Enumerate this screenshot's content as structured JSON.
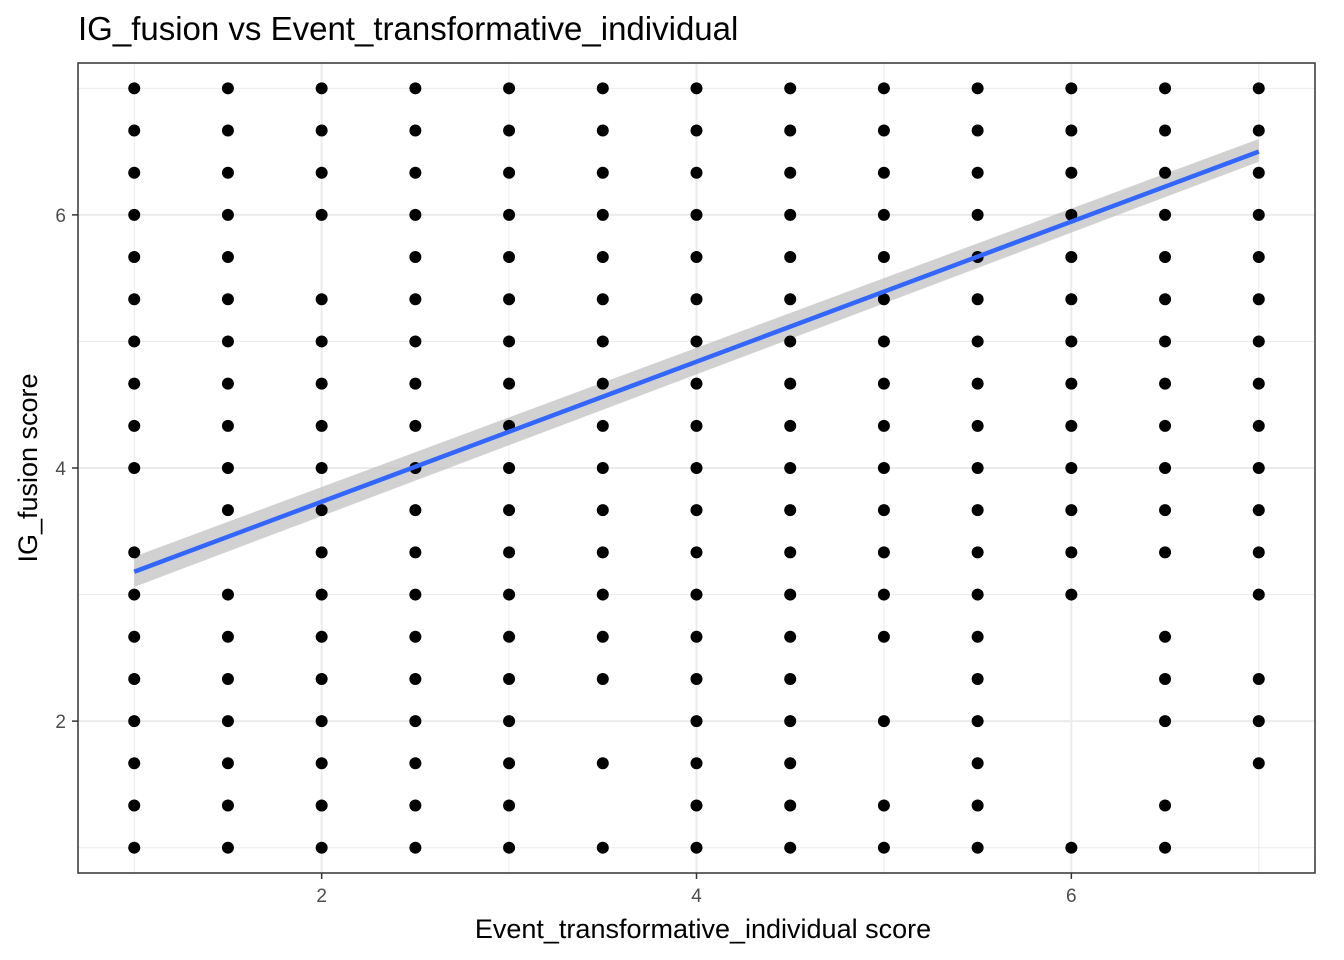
{
  "chart_data": {
    "type": "scatter",
    "title": "IG_fusion vs Event_transformative_individual",
    "xlabel": "Event_transformative_individual score",
    "ylabel": "IG_fusion score",
    "xlim": [
      0.7,
      7.3
    ],
    "ylim": [
      0.8,
      7.2
    ],
    "x_ticks": [
      2,
      4,
      6
    ],
    "y_ticks": [
      2,
      4,
      6
    ],
    "x_tick_labels": [
      "2",
      "4",
      "6"
    ],
    "y_tick_labels": [
      "2",
      "4",
      "6"
    ],
    "grid": true,
    "point_color": "#000000",
    "trend_color": "#3366FF",
    "band_color": "#BEBEBE",
    "columns": [
      {
        "x": 1,
        "y": [
          7,
          6.667,
          6.333,
          6,
          5.667,
          5.333,
          5,
          4.667,
          4.333,
          4,
          3.333,
          3,
          2.667,
          2.333,
          2,
          1.667,
          1.333,
          1
        ]
      },
      {
        "x": 1.5,
        "y": [
          7,
          6.667,
          6.333,
          6,
          5.667,
          5.333,
          5,
          4.667,
          4.333,
          4,
          3.667,
          3,
          2.667,
          2.333,
          2,
          1.667,
          1.333,
          1
        ]
      },
      {
        "x": 2,
        "y": [
          7,
          6.667,
          6.333,
          6,
          5.333,
          5,
          4.667,
          4.333,
          4,
          3.667,
          3.333,
          3,
          2.667,
          2.333,
          2,
          1.667,
          1.333,
          1
        ]
      },
      {
        "x": 2.5,
        "y": [
          7,
          6.667,
          6.333,
          6,
          5.667,
          5.333,
          5,
          4.667,
          4.333,
          4,
          3.667,
          3.333,
          3,
          2.667,
          2.333,
          2,
          1.667,
          1.333,
          1
        ]
      },
      {
        "x": 3,
        "y": [
          7,
          6.667,
          6.333,
          6,
          5.667,
          5.333,
          5,
          4.667,
          4.333,
          4,
          3.667,
          3.333,
          3,
          2.667,
          2.333,
          2,
          1.667,
          1.333,
          1
        ]
      },
      {
        "x": 3.5,
        "y": [
          7,
          6.667,
          6.333,
          6,
          5.667,
          5.333,
          5,
          4.667,
          4.333,
          4,
          3.667,
          3.333,
          3,
          2.667,
          2.333,
          1.667,
          1
        ]
      },
      {
        "x": 4,
        "y": [
          7,
          6.667,
          6.333,
          6,
          5.667,
          5.333,
          5,
          4.667,
          4.333,
          4,
          3.667,
          3.333,
          3,
          2.667,
          2.333,
          2,
          1.667,
          1.333,
          1
        ]
      },
      {
        "x": 4.5,
        "y": [
          7,
          6.667,
          6.333,
          6,
          5.667,
          5.333,
          5,
          4.667,
          4.333,
          4,
          3.667,
          3.333,
          3,
          2.667,
          2.333,
          2,
          1.667,
          1.333,
          1
        ]
      },
      {
        "x": 5,
        "y": [
          7,
          6.667,
          6.333,
          6,
          5.667,
          5.333,
          5,
          4.667,
          4.333,
          4,
          3.667,
          3.333,
          3,
          2.667,
          2,
          1.333,
          1
        ]
      },
      {
        "x": 5.5,
        "y": [
          7,
          6.667,
          6.333,
          6,
          5.667,
          5.333,
          5,
          4.667,
          4.333,
          4,
          3.667,
          3.333,
          3,
          2.667,
          2.333,
          2,
          1.667,
          1.333,
          1
        ]
      },
      {
        "x": 6,
        "y": [
          7,
          6.667,
          6.333,
          6,
          5.667,
          5.333,
          5,
          4.667,
          4.333,
          4,
          3.667,
          3.333,
          3,
          1
        ]
      },
      {
        "x": 6.5,
        "y": [
          7,
          6.667,
          6.333,
          6,
          5.667,
          5.333,
          5,
          4.667,
          4.333,
          4,
          3.667,
          3.333,
          2.667,
          2.333,
          2,
          1.333,
          1
        ]
      },
      {
        "x": 7,
        "y": [
          7,
          6.667,
          6.333,
          6,
          5.667,
          5.333,
          5,
          4.667,
          4.333,
          4,
          3.667,
          3.333,
          3,
          2.333,
          2,
          1.667
        ]
      }
    ],
    "trend_line": {
      "x": [
        1,
        7
      ],
      "y": [
        3.18,
        6.5
      ],
      "band_lower": [
        3.06,
        6.42
      ],
      "band_upper": [
        3.3,
        6.6
      ]
    }
  }
}
